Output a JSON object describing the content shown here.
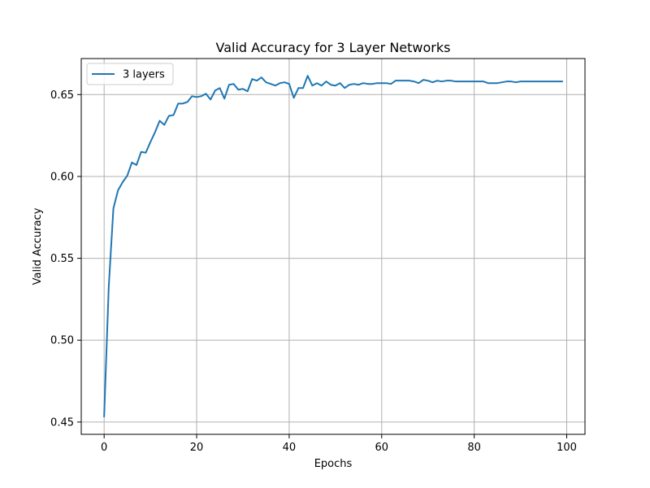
{
  "chart_data": {
    "type": "line",
    "title": "Valid Accuracy for 3 Layer Networks",
    "xlabel": "Epochs",
    "ylabel": "Valid Accuracy",
    "xlim": [
      -4.95,
      103.95
    ],
    "ylim": [
      0.4425,
      0.672
    ],
    "xticks": [
      0,
      20,
      40,
      60,
      80,
      100
    ],
    "yticks": [
      0.45,
      0.5,
      0.55,
      0.6,
      0.65
    ],
    "xtick_labels": [
      "0",
      "20",
      "40",
      "60",
      "80",
      "100"
    ],
    "ytick_labels": [
      "0.45",
      "0.50",
      "0.55",
      "0.60",
      "0.65"
    ],
    "grid": true,
    "legend_position": "upper-left",
    "series": [
      {
        "name": "3 layers",
        "color": "#1f77b4",
        "x": [
          0,
          1,
          2,
          3,
          4,
          5,
          6,
          7,
          8,
          9,
          10,
          11,
          12,
          13,
          14,
          15,
          16,
          17,
          18,
          19,
          20,
          21,
          22,
          23,
          24,
          25,
          26,
          27,
          28,
          29,
          30,
          31,
          32,
          33,
          34,
          35,
          36,
          37,
          38,
          39,
          40,
          41,
          42,
          43,
          44,
          45,
          46,
          47,
          48,
          49,
          50,
          51,
          52,
          53,
          54,
          55,
          56,
          57,
          58,
          59,
          60,
          61,
          62,
          63,
          64,
          65,
          66,
          67,
          68,
          69,
          70,
          71,
          72,
          73,
          74,
          75,
          76,
          77,
          78,
          79,
          80,
          81,
          82,
          83,
          84,
          85,
          86,
          87,
          88,
          89,
          90,
          91,
          92,
          93,
          94,
          95,
          96,
          97,
          98,
          99
        ],
        "values": [
          0.4535,
          0.533,
          0.5805,
          0.5915,
          0.5965,
          0.6005,
          0.6085,
          0.607,
          0.615,
          0.6145,
          0.621,
          0.627,
          0.634,
          0.6315,
          0.637,
          0.6375,
          0.6445,
          0.6445,
          0.6455,
          0.649,
          0.6485,
          0.649,
          0.6505,
          0.647,
          0.6525,
          0.654,
          0.6475,
          0.656,
          0.6565,
          0.653,
          0.6535,
          0.652,
          0.6595,
          0.6585,
          0.6605,
          0.6575,
          0.6565,
          0.6555,
          0.657,
          0.6575,
          0.6565,
          0.648,
          0.654,
          0.654,
          0.6615,
          0.6555,
          0.657,
          0.6555,
          0.658,
          0.656,
          0.6555,
          0.657,
          0.654,
          0.656,
          0.6565,
          0.656,
          0.657,
          0.6565,
          0.6565,
          0.657,
          0.657,
          0.657,
          0.6565,
          0.6585,
          0.6585,
          0.6585,
          0.6585,
          0.658,
          0.657,
          0.659,
          0.6585,
          0.6575,
          0.6585,
          0.658,
          0.6585,
          0.6585,
          0.658,
          0.658,
          0.658,
          0.658,
          0.658,
          0.658,
          0.658,
          0.657,
          0.657,
          0.657,
          0.6575,
          0.658,
          0.658,
          0.6575,
          0.658,
          0.658,
          0.658,
          0.658,
          0.658,
          0.658,
          0.658,
          0.658,
          0.658,
          0.658
        ]
      }
    ]
  }
}
